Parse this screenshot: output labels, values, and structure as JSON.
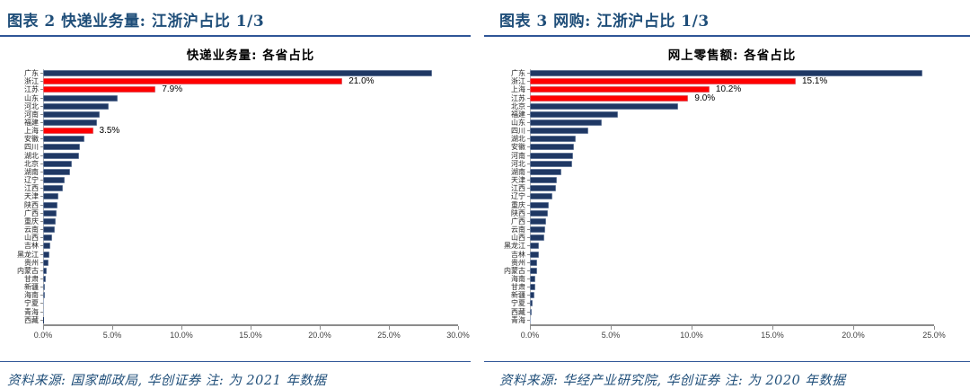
{
  "page": {
    "background": "#FFFFFF",
    "accent_blue": "#1F4E79",
    "rule_blue": "#2F5597"
  },
  "figures": [
    {
      "header": "图表 2  快递业务量: 江浙沪占比 1/3",
      "source_note": "资料来源: 国家邮政局, 华创证券  注: 为 2021 年数据"
    },
    {
      "header": "图表 3  网购: 江浙沪占比 1/3",
      "source_note": "资料来源: 华经产业研究院, 华创证券  注: 为 2020 年数据"
    }
  ],
  "chart_data": [
    {
      "type": "bar",
      "orientation": "horizontal",
      "title": "快递业务量: 各省占比",
      "xlabel": "",
      "ylabel": "",
      "xlim": [
        0,
        30
      ],
      "x_ticks": [
        "0.0%",
        "5.0%",
        "10.0%",
        "15.0%",
        "20.0%",
        "25.0%",
        "30.0%"
      ],
      "grid": false,
      "legend": false,
      "bar_color": "#1F3864",
      "highlight_color": "#FF0000",
      "categories": [
        "广东",
        "浙江",
        "江苏",
        "山东",
        "河北",
        "河南",
        "福建",
        "上海",
        "安徽",
        "四川",
        "湖北",
        "北京",
        "湖南",
        "辽宁",
        "江西",
        "天津",
        "陕西",
        "广西",
        "重庆",
        "云南",
        "山西",
        "吉林",
        "黑龙江",
        "贵州",
        "内蒙古",
        "甘肃",
        "新疆",
        "海南",
        "宁夏",
        "青海",
        "西藏"
      ],
      "values": [
        27.3,
        21.0,
        7.9,
        5.2,
        4.6,
        4.0,
        3.8,
        3.5,
        2.9,
        2.6,
        2.5,
        2.0,
        1.9,
        1.5,
        1.4,
        1.1,
        1.0,
        0.95,
        0.9,
        0.8,
        0.65,
        0.5,
        0.45,
        0.35,
        0.25,
        0.2,
        0.15,
        0.12,
        0.08,
        0.05,
        0.03
      ],
      "highlighted": [
        "浙江",
        "江苏",
        "上海"
      ],
      "data_labels": {
        "浙江": "21.0%",
        "江苏": "7.9%",
        "上海": "3.5%"
      }
    },
    {
      "type": "bar",
      "orientation": "horizontal",
      "title": "网上零售额: 各省占比",
      "xlabel": "",
      "ylabel": "",
      "xlim": [
        0,
        25
      ],
      "x_ticks": [
        "0.0%",
        "5.0%",
        "10.0%",
        "15.0%",
        "20.0%",
        "25.0%"
      ],
      "grid": false,
      "legend": false,
      "bar_color": "#1F3864",
      "highlight_color": "#FF0000",
      "categories": [
        "广东",
        "浙江",
        "上海",
        "江苏",
        "北京",
        "福建",
        "山东",
        "四川",
        "湖北",
        "安徽",
        "河南",
        "河北",
        "湖南",
        "天津",
        "江西",
        "辽宁",
        "重庆",
        "陕西",
        "广西",
        "云南",
        "山西",
        "黑龙江",
        "吉林",
        "贵州",
        "内蒙古",
        "海南",
        "甘肃",
        "新疆",
        "宁夏",
        "西藏",
        "青海"
      ],
      "values": [
        22.3,
        15.1,
        10.2,
        9.0,
        8.4,
        5.0,
        4.1,
        3.3,
        2.6,
        2.5,
        2.45,
        2.4,
        1.8,
        1.55,
        1.5,
        1.3,
        1.05,
        1.0,
        0.9,
        0.85,
        0.8,
        0.5,
        0.5,
        0.4,
        0.4,
        0.3,
        0.3,
        0.25,
        0.15,
        0.1,
        0.05
      ],
      "highlighted": [
        "浙江",
        "上海",
        "江苏"
      ],
      "data_labels": {
        "浙江": "15.1%",
        "上海": "10.2%",
        "江苏": "9.0%"
      }
    }
  ]
}
